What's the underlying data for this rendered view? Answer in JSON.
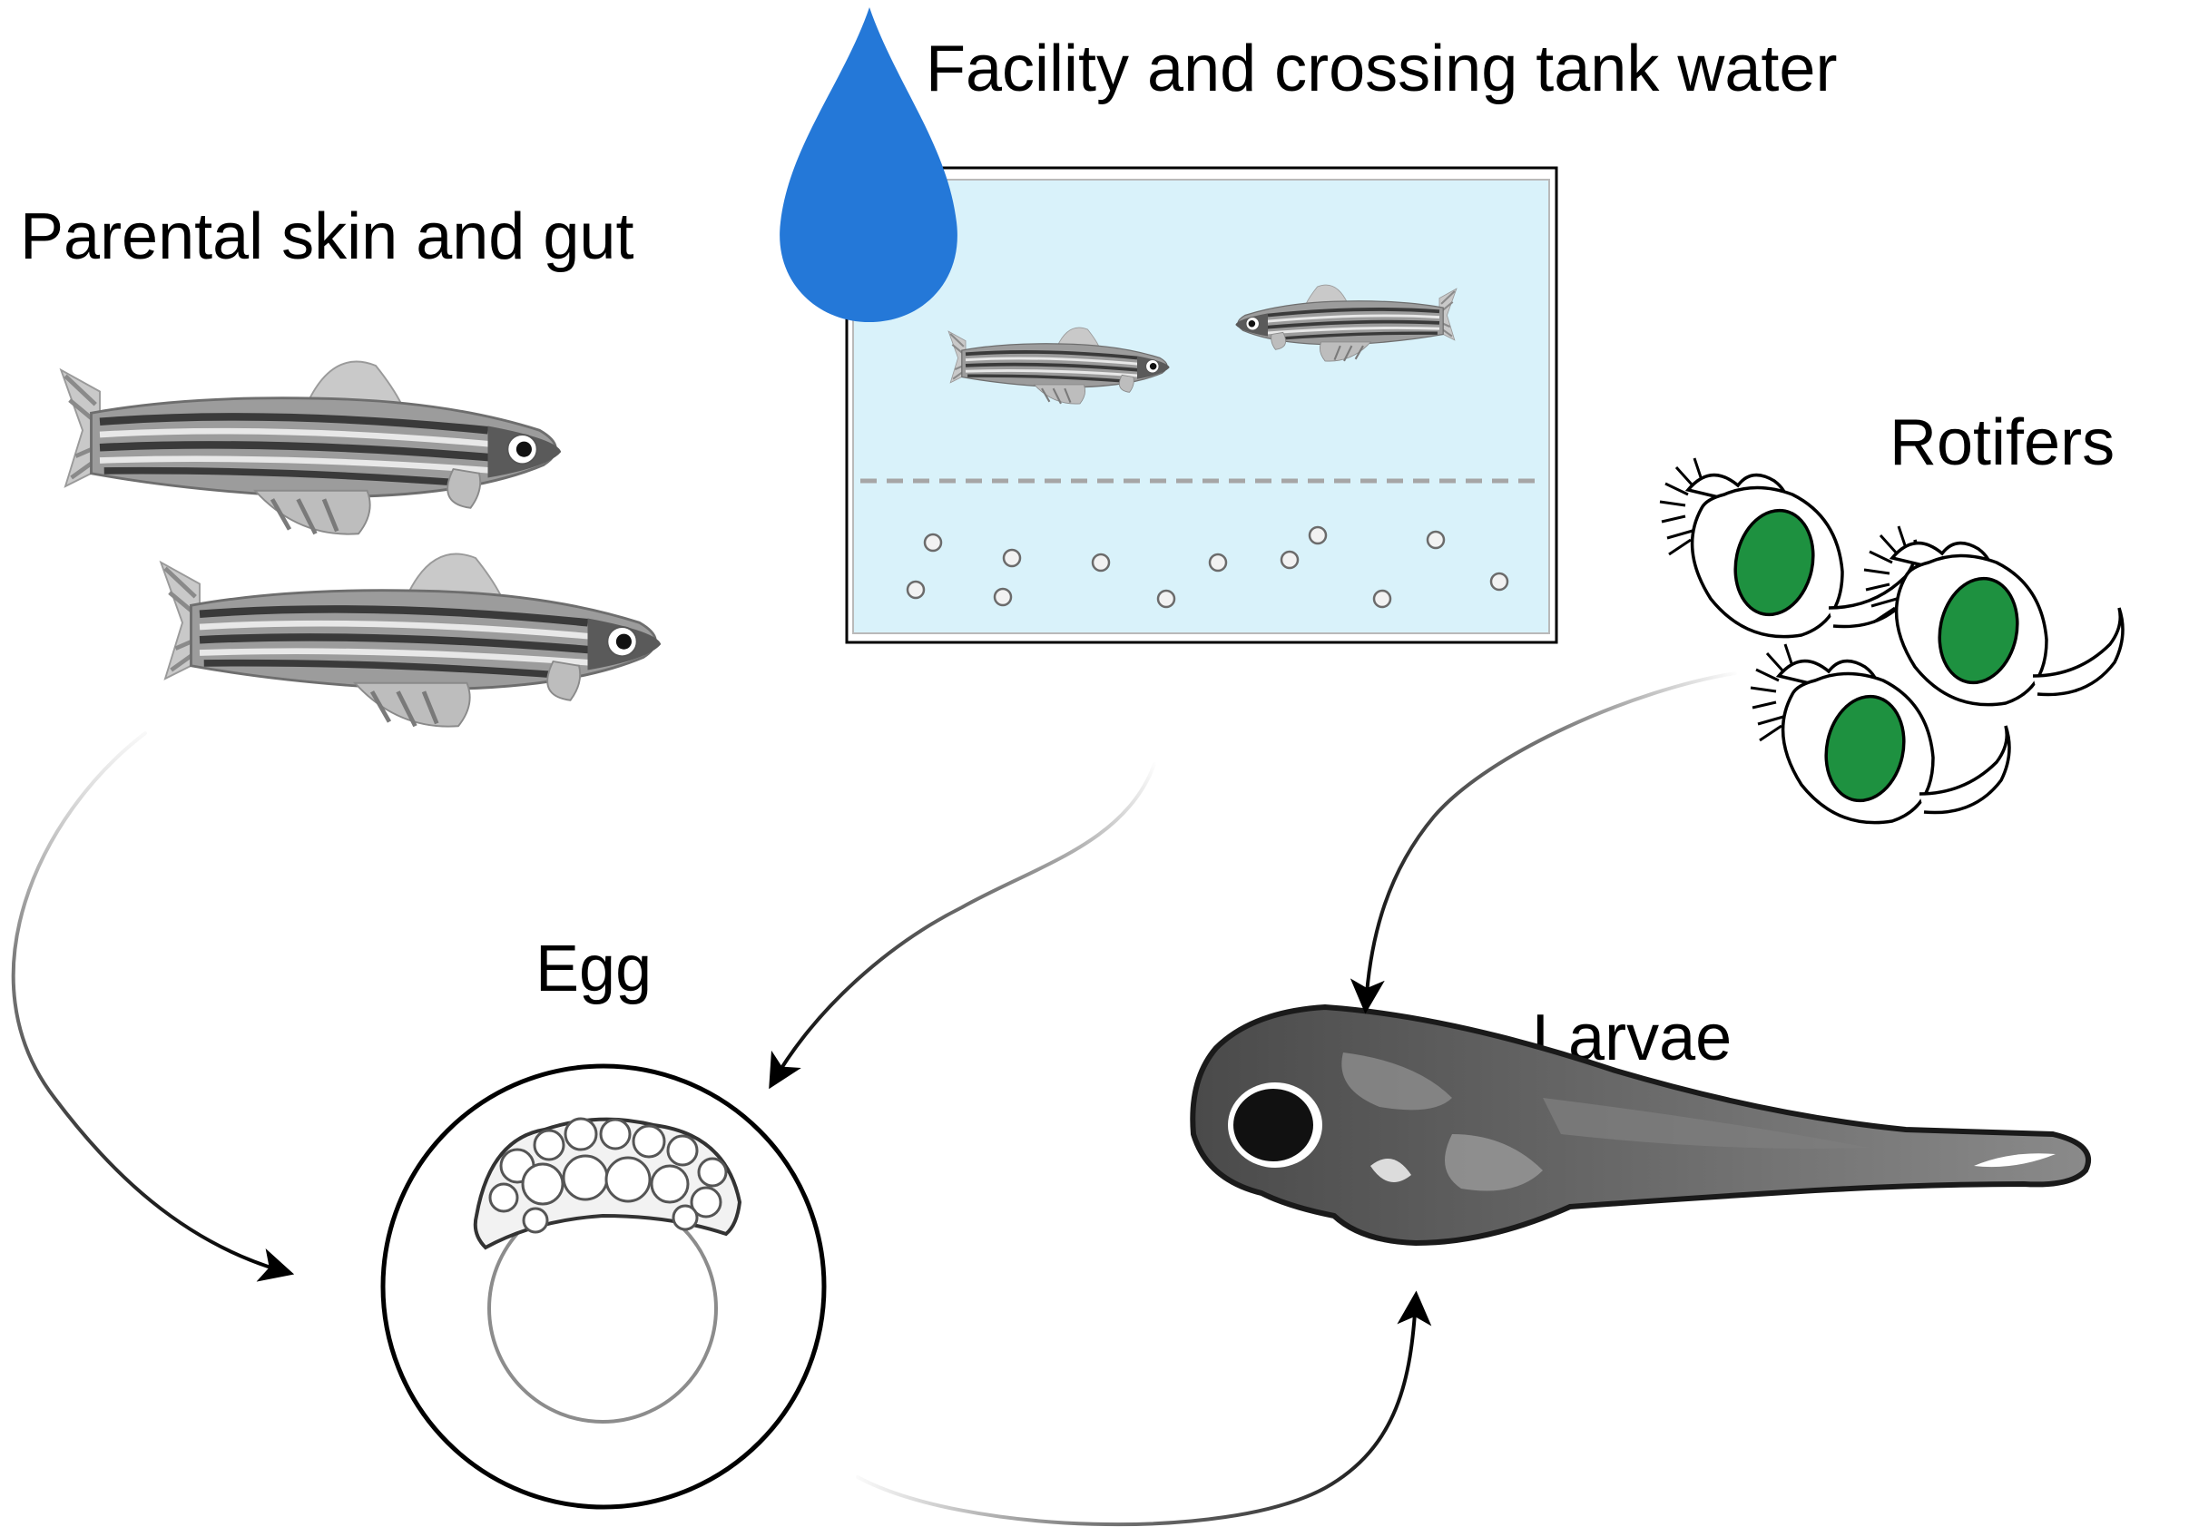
{
  "labels": {
    "water_source": "Facility and crossing tank water",
    "parental_source": "Parental skin and gut",
    "rotifers": "Rotifers",
    "egg": "Egg",
    "larvae": "Larvae"
  },
  "colors": {
    "water_drop": "#2478d8",
    "tank_water": "#d9f2fa",
    "rotifer_body": "#1e9140",
    "larva_body": "#5a5a5a",
    "fish_body": "#8a8a8a"
  },
  "icons": {
    "water_drop": "water-drop-icon",
    "tank": "crossing-tank-icon",
    "parent_fish": "zebrafish-icon",
    "rotifer": "rotifer-icon",
    "egg": "egg-icon",
    "larva": "larva-icon"
  }
}
